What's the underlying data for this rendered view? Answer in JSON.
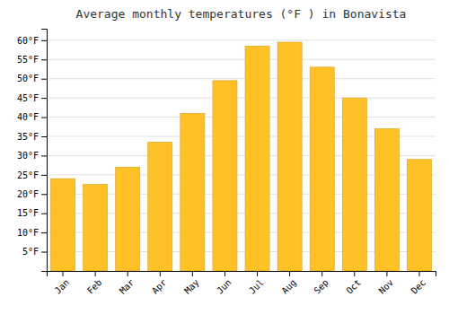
{
  "chart_data": {
    "type": "bar",
    "title": "Average monthly temperatures (°F ) in Bonavista",
    "categories": [
      "Jan",
      "Feb",
      "Mar",
      "Apr",
      "May",
      "Jun",
      "Jul",
      "Aug",
      "Sep",
      "Oct",
      "Nov",
      "Dec"
    ],
    "values": [
      24,
      22.5,
      27,
      33.5,
      41,
      49.5,
      58.5,
      59.5,
      53,
      45,
      37,
      29
    ],
    "color": "#FFC125",
    "ylim": [
      0,
      63
    ],
    "yticks": [
      {
        "value": 5,
        "label": "5°F"
      },
      {
        "value": 10,
        "label": "10°F"
      },
      {
        "value": 15,
        "label": "15°F"
      },
      {
        "value": 20,
        "label": "20°F"
      },
      {
        "value": 25,
        "label": "25°F"
      },
      {
        "value": 30,
        "label": "30°F"
      },
      {
        "value": 35,
        "label": "35°F"
      },
      {
        "value": 40,
        "label": "40°F"
      },
      {
        "value": 45,
        "label": "45°F"
      },
      {
        "value": 50,
        "label": "50°F"
      },
      {
        "value": 55,
        "label": "55°F"
      },
      {
        "value": 60,
        "label": "60°F"
      }
    ],
    "grid": true
  }
}
